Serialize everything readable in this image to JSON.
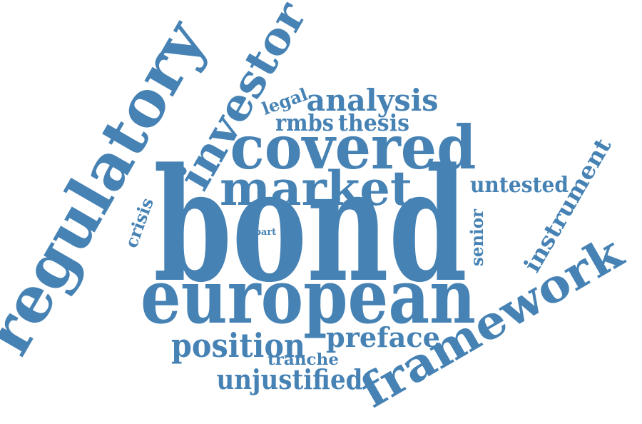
{
  "color": "#4682b4",
  "words": [
    {
      "text": "bond"
    },
    {
      "text": "european"
    },
    {
      "text": "covered"
    },
    {
      "text": "market"
    },
    {
      "text": "regulatory"
    },
    {
      "text": "investor"
    },
    {
      "text": "framework"
    },
    {
      "text": "analysis"
    },
    {
      "text": "legal"
    },
    {
      "text": "rmbs"
    },
    {
      "text": "thesis"
    },
    {
      "text": "untested"
    },
    {
      "text": "instrument"
    },
    {
      "text": "senior"
    },
    {
      "text": "crisis"
    },
    {
      "text": "part"
    },
    {
      "text": "position"
    },
    {
      "text": "preface"
    },
    {
      "text": "tranche"
    },
    {
      "text": "unjustified"
    }
  ]
}
